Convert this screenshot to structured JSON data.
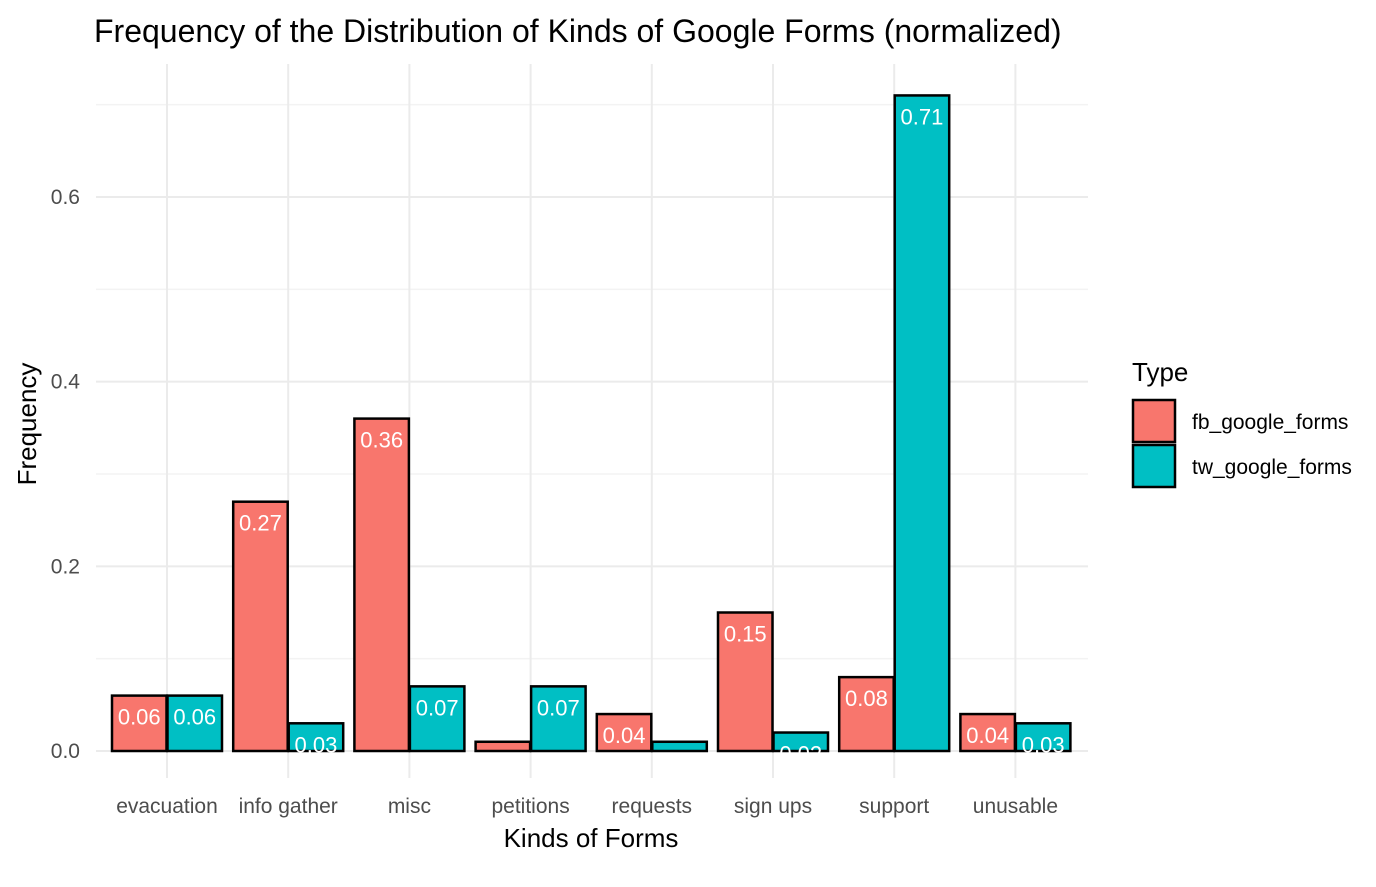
{
  "chart_data": {
    "type": "bar",
    "title": "Frequency of the Distribution of Kinds of Google Forms (normalized)",
    "xlabel": "Kinds of Forms",
    "ylabel": "Frequency",
    "categories": [
      "evacuation",
      "info gather",
      "misc",
      "petitions",
      "requests",
      "sign ups",
      "support",
      "unusable"
    ],
    "series": [
      {
        "name": "fb_google_forms",
        "color": "#F8766D",
        "values": [
          0.06,
          0.27,
          0.36,
          0.01,
          0.04,
          0.15,
          0.08,
          0.04
        ],
        "labels": [
          "0.06",
          "0.27",
          "0.36",
          "",
          "0.04",
          "0.15",
          "0.08",
          "0.04"
        ]
      },
      {
        "name": "tw_google_forms",
        "color": "#00BFC4",
        "values": [
          0.06,
          0.03,
          0.07,
          0.07,
          0.01,
          0.02,
          0.71,
          0.03
        ],
        "labels": [
          "0.06",
          "0.03",
          "0.07",
          "0.07",
          "",
          "0.02",
          "0.71",
          "0.03"
        ]
      }
    ],
    "ylim": [
      -0.03,
      0.73
    ],
    "yticks": [
      0.0,
      0.2,
      0.4,
      0.6
    ],
    "ytick_labels": [
      "0.0",
      "0.2",
      "0.4",
      "0.6"
    ],
    "legend": {
      "title": "Type",
      "position": "right"
    },
    "grid": true
  }
}
